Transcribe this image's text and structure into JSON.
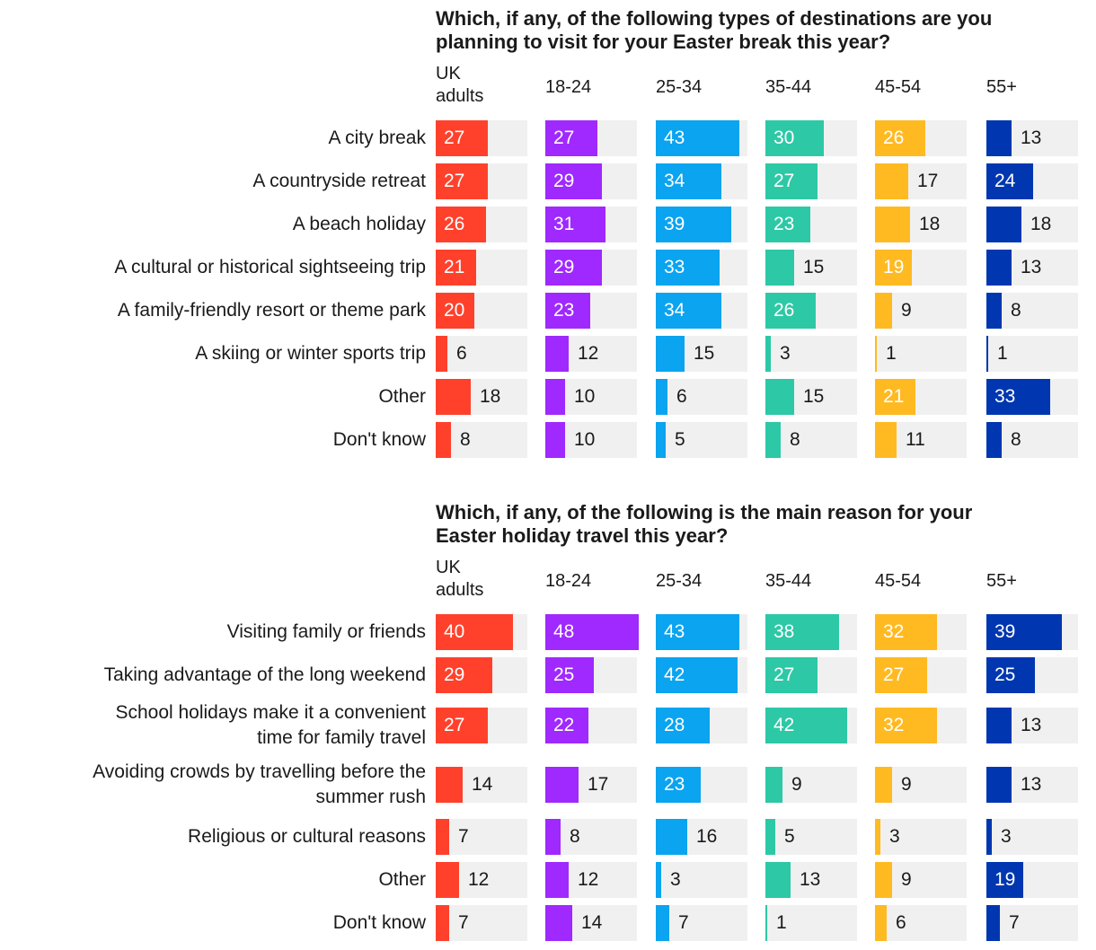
{
  "chart_data": [
    {
      "type": "bar",
      "title": "Which, if any, of the following types of destinations are you planning to visit for your Easter break this year?",
      "title_lines": [
        "Which, if any, of the following types of destinations are you",
        "planning to visit for your Easter break this year?"
      ],
      "categories": [
        [
          "A city break"
        ],
        [
          "A countryside retreat"
        ],
        [
          "A beach holiday"
        ],
        [
          "A cultural or historical sightseeing trip"
        ],
        [
          "A family-friendly resort or theme park"
        ],
        [
          "A skiing or winter sports trip"
        ],
        [
          "Other"
        ],
        [
          "Don't know"
        ]
      ],
      "series": [
        {
          "name": "UK adults",
          "name_lines": [
            "UK",
            "adults"
          ],
          "color": "#ff412c",
          "values": [
            27,
            27,
            26,
            21,
            20,
            6,
            18,
            8
          ]
        },
        {
          "name": "18-24",
          "name_lines": [
            "18-24"
          ],
          "color": "#9f29ff",
          "values": [
            27,
            29,
            31,
            29,
            23,
            12,
            10,
            10
          ]
        },
        {
          "name": "25-34",
          "name_lines": [
            "25-34"
          ],
          "color": "#0aa4f0",
          "values": [
            43,
            34,
            39,
            33,
            34,
            15,
            6,
            5
          ]
        },
        {
          "name": "35-44",
          "name_lines": [
            "35-44"
          ],
          "color": "#2dc8a6",
          "values": [
            30,
            27,
            23,
            15,
            26,
            3,
            15,
            8
          ]
        },
        {
          "name": "45-54",
          "name_lines": [
            "45-54"
          ],
          "color": "#ffba22",
          "values": [
            26,
            17,
            18,
            19,
            9,
            1,
            21,
            11
          ]
        },
        {
          "name": "55+",
          "name_lines": [
            "55+"
          ],
          "color": "#0037b0",
          "values": [
            13,
            24,
            18,
            13,
            8,
            1,
            33,
            8
          ]
        }
      ],
      "xlim": [
        0,
        48
      ]
    },
    {
      "type": "bar",
      "title": "Which, if any, of the following is the main reason for your Easter holiday travel this year?",
      "title_lines": [
        "Which, if any, of the following is the main reason for your",
        "Easter holiday travel this year?"
      ],
      "categories": [
        [
          "Visiting family or friends"
        ],
        [
          "Taking advantage of the long weekend"
        ],
        [
          "School holidays make it a convenient",
          "time for family travel"
        ],
        [
          "Avoiding crowds by travelling before the",
          "summer rush"
        ],
        [
          "Religious or cultural reasons"
        ],
        [
          "Other"
        ],
        [
          "Don't know"
        ]
      ],
      "series": [
        {
          "name": "UK adults",
          "name_lines": [
            "UK",
            "adults"
          ],
          "color": "#ff412c",
          "values": [
            40,
            29,
            27,
            14,
            7,
            12,
            7
          ]
        },
        {
          "name": "18-24",
          "name_lines": [
            "18-24"
          ],
          "color": "#9f29ff",
          "values": [
            48,
            25,
            22,
            17,
            8,
            12,
            14
          ]
        },
        {
          "name": "25-34",
          "name_lines": [
            "25-34"
          ],
          "color": "#0aa4f0",
          "values": [
            43,
            42,
            28,
            23,
            16,
            3,
            7
          ]
        },
        {
          "name": "35-44",
          "name_lines": [
            "35-44"
          ],
          "color": "#2dc8a6",
          "values": [
            38,
            27,
            42,
            9,
            5,
            13,
            1
          ]
        },
        {
          "name": "45-54",
          "name_lines": [
            "45-54"
          ],
          "color": "#ffba22",
          "values": [
            32,
            27,
            32,
            9,
            3,
            9,
            6
          ]
        },
        {
          "name": "55+",
          "name_lines": [
            "55+"
          ],
          "color": "#0037b0",
          "values": [
            39,
            25,
            13,
            13,
            3,
            19,
            7
          ]
        }
      ],
      "xlim": [
        0,
        48
      ]
    }
  ]
}
